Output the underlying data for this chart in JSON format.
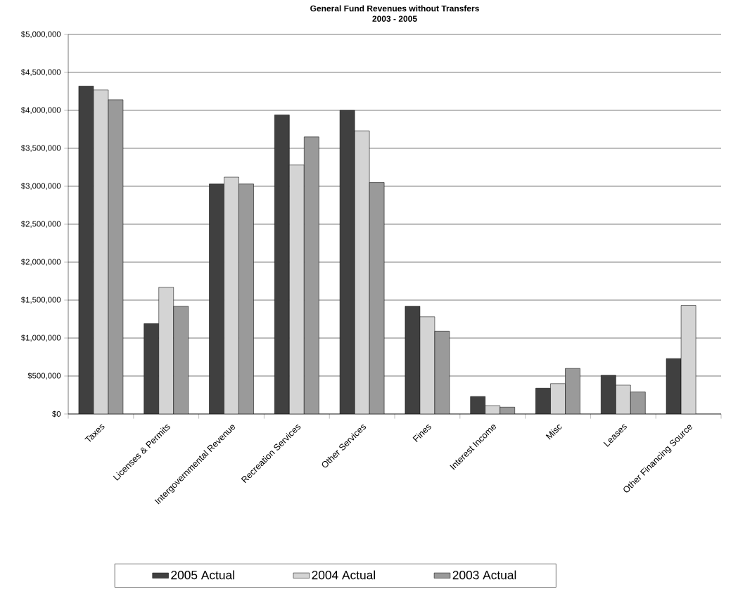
{
  "chart_data": {
    "type": "bar",
    "title": "General Fund Revenues without Transfers",
    "subtitle": "2003 - 2005",
    "categories": [
      "Taxes",
      "Licenses & Permits",
      "Intergovernmental Revenue",
      "Recreation Services",
      "Other Services",
      "Fines",
      "Interest Income",
      "Misc",
      "Leases",
      "Other Financing Source"
    ],
    "series": [
      {
        "name": "2005 Actual",
        "color": "#404040",
        "values": [
          4320000,
          1190000,
          3030000,
          3940000,
          4000000,
          1420000,
          230000,
          340000,
          510000,
          730000
        ]
      },
      {
        "name": "2004 Actual",
        "color": "#d4d4d4",
        "values": [
          4270000,
          1670000,
          3120000,
          3280000,
          3730000,
          1280000,
          110000,
          400000,
          380000,
          1430000
        ]
      },
      {
        "name": "2003 Actual",
        "color": "#9a9a9a",
        "values": [
          4140000,
          1420000,
          3030000,
          3650000,
          3050000,
          1090000,
          90000,
          600000,
          290000,
          null
        ]
      }
    ],
    "ylim": [
      0,
      5000000
    ],
    "yticks": [
      {
        "value": 0,
        "label": "$0"
      },
      {
        "value": 500000,
        "label": "$500,000"
      },
      {
        "value": 1000000,
        "label": "$1,000,000"
      },
      {
        "value": 1500000,
        "label": "$1,500,000"
      },
      {
        "value": 2000000,
        "label": "$2,000,000"
      },
      {
        "value": 2500000,
        "label": "$2,500,000"
      },
      {
        "value": 3000000,
        "label": "$3,000,000"
      },
      {
        "value": 3500000,
        "label": "$3,500,000"
      },
      {
        "value": 4000000,
        "label": "$4,000,000"
      },
      {
        "value": 4500000,
        "label": "$4,500,000"
      },
      {
        "value": 5000000,
        "label": "$5,000,000"
      }
    ],
    "grid": "y",
    "legend": "bottom"
  }
}
